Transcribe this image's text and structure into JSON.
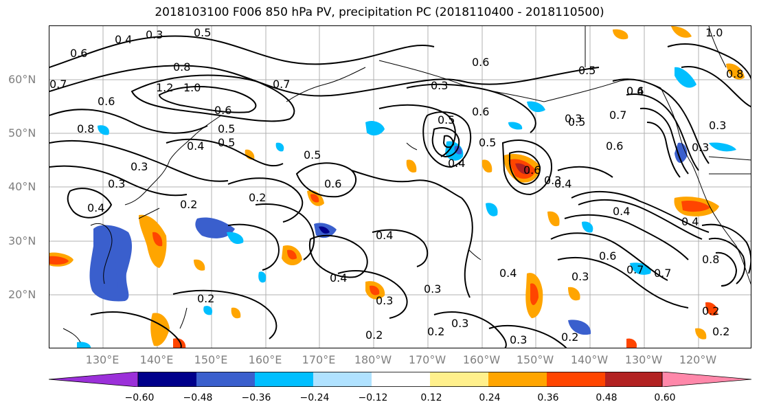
{
  "title": "2018103100 F006 850 hPa PV, precipitation PC (2018110400 - 2018110500)",
  "lat_labels": [
    "60°N",
    "50°N",
    "40°N",
    "30°N",
    "20°N"
  ],
  "lon_labels": [
    "130°E",
    "140°E",
    "150°E",
    "160°E",
    "170°E",
    "180°W",
    "170°W",
    "160°W",
    "150°W",
    "140°W",
    "130°W",
    "120°W"
  ],
  "contour_labels": [
    "0.4",
    "0.3",
    "0.5",
    "0.6",
    "0.7",
    "0.8",
    "1.0",
    "1.2",
    "0.7",
    "0.6",
    "0.5",
    "0.3",
    "0.8",
    "0.6",
    "0.5",
    "0.4",
    "0.2",
    "0.3",
    "0.4",
    "0.5",
    "0.6",
    "0.2",
    "0.3",
    "0.4",
    "0.5",
    "0.6",
    "0.4",
    "0.3",
    "0.2",
    "0.4",
    "0.3",
    "0.2",
    "0.3",
    "0.2",
    "0.3",
    "0.2",
    "0.4",
    "0.6",
    "0.5",
    "0.6",
    "0.4",
    "0.3",
    "0.5",
    "0.6",
    "0.3",
    "0.4",
    "0.7",
    "0.8",
    "0.2",
    "1.0",
    "0.8",
    "0.3",
    "0.7",
    "0.6",
    "0.4",
    "0.5",
    "0.3",
    "0.4",
    "0.6",
    "0.7",
    "0.3",
    "0.2"
  ],
  "colorbar": {
    "colors": [
      "#9b30d9",
      "#00008b",
      "#3a5fcd",
      "#00bfff",
      "#b0e2ff",
      "#ffffff",
      "#fff08c",
      "#ffa500",
      "#ff4500",
      "#b22222",
      "#ff88aa"
    ],
    "tick_labels": [
      "−0.60",
      "−0.48",
      "−0.36",
      "−0.24",
      "−0.12",
      "0.12",
      "0.24",
      "0.36",
      "0.48",
      "0.60"
    ]
  },
  "map": {
    "grid": true,
    "lon_range": "120°E–110°W",
    "lat_range": "10°N–70°N",
    "layers": [
      "coastlines",
      "PV contours",
      "precipitation PC shading"
    ]
  }
}
